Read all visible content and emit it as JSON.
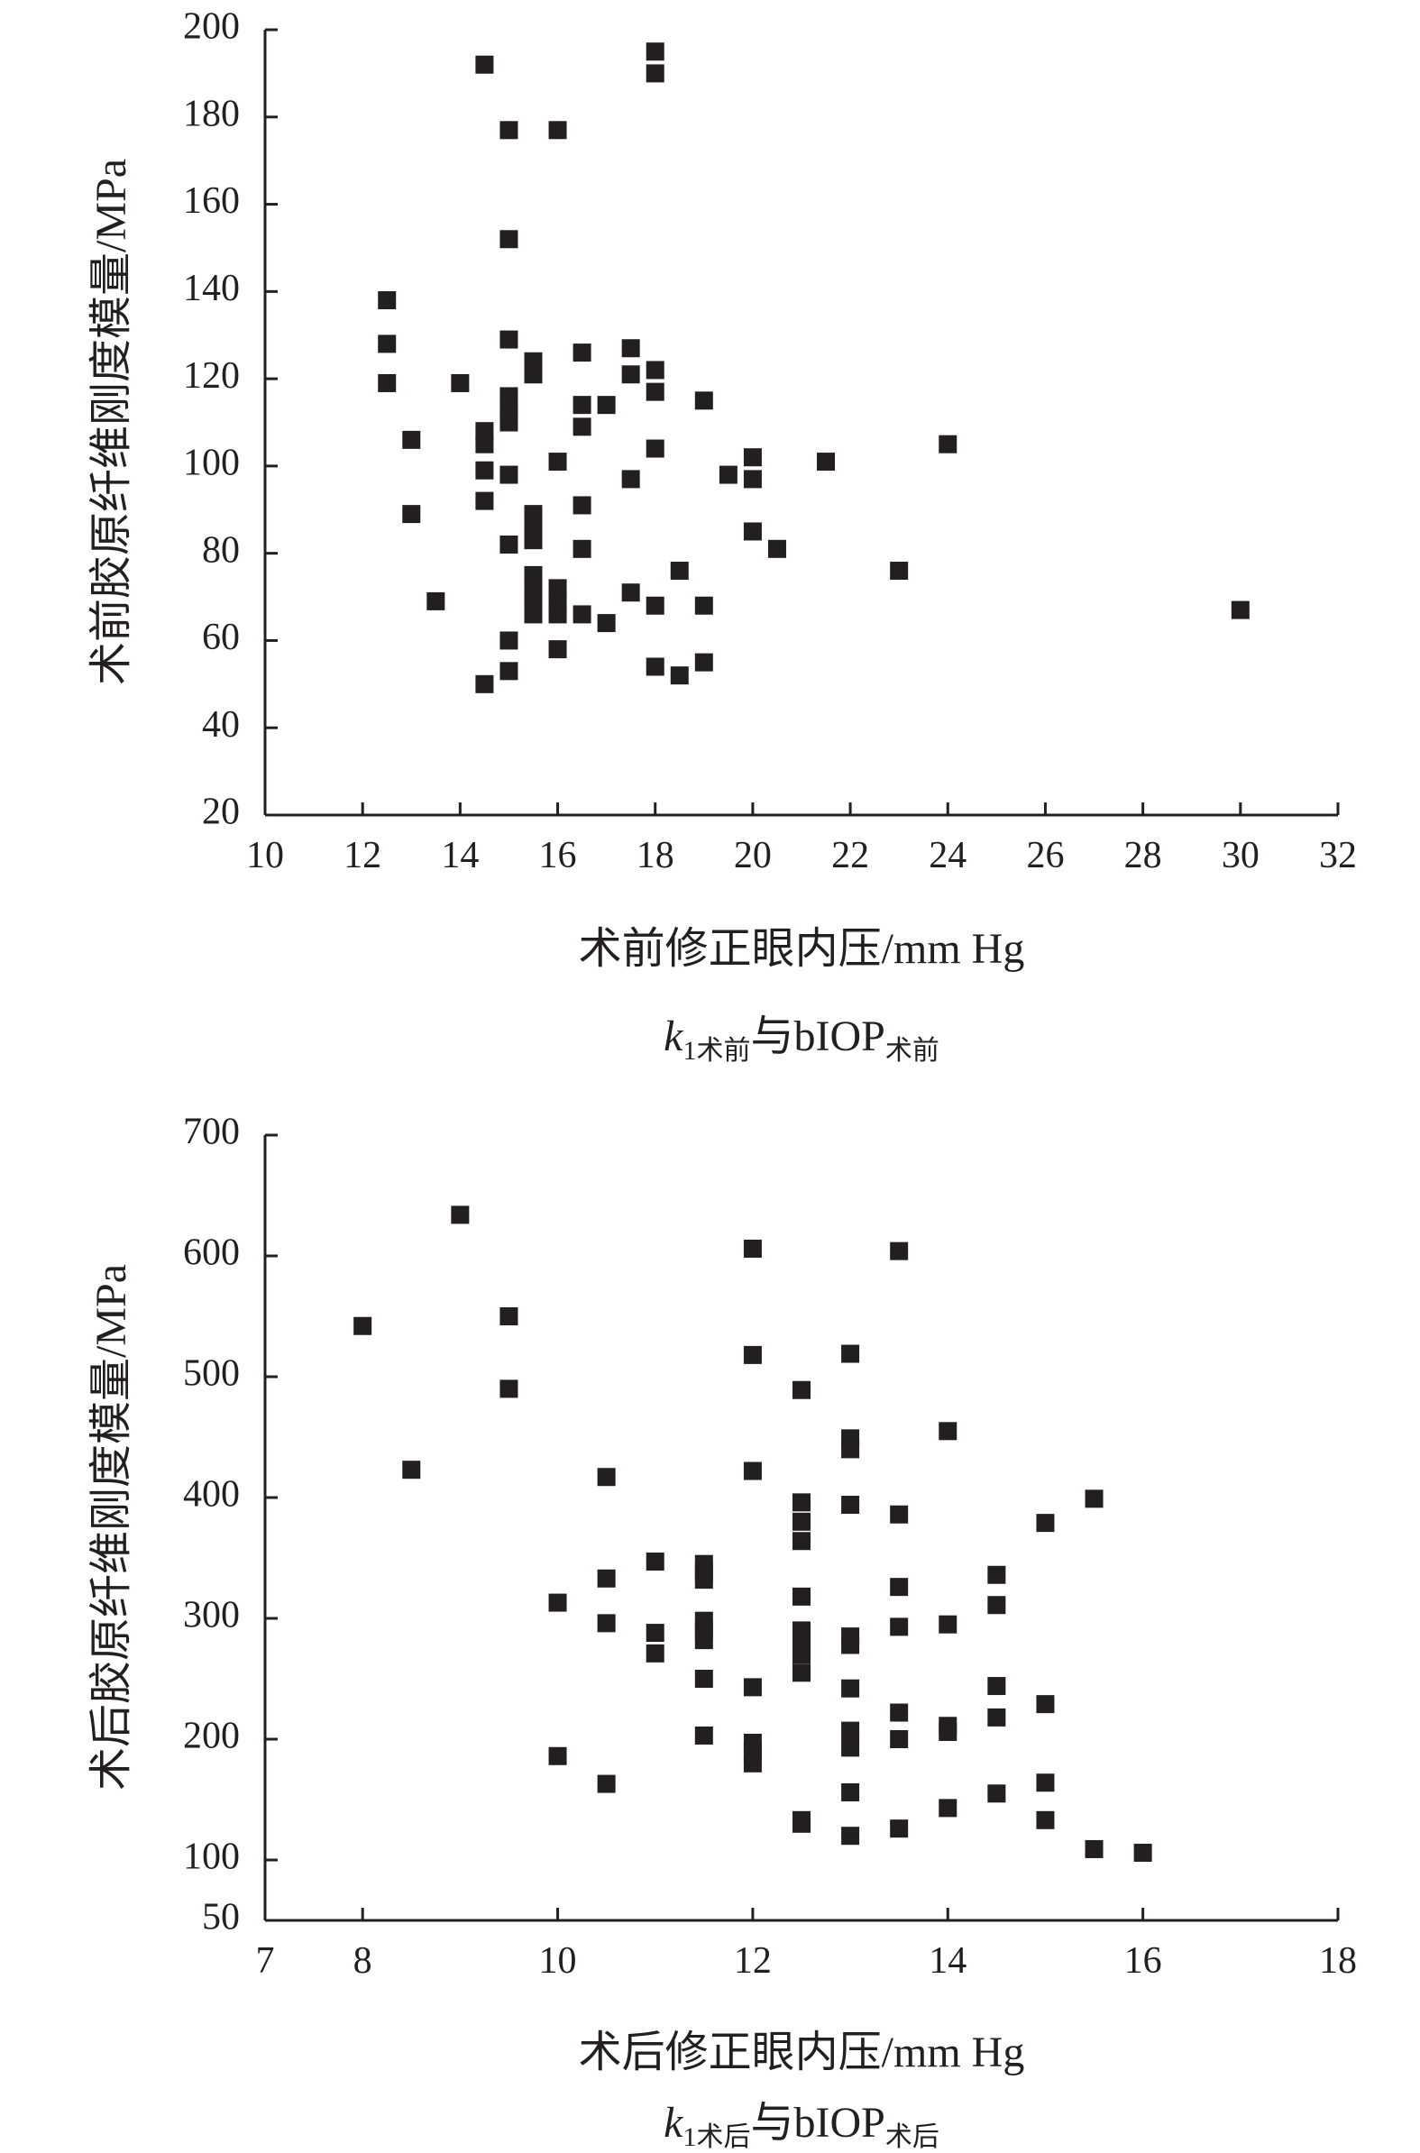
{
  "chart_data": [
    {
      "type": "scatter",
      "xlabel": "术前修正眼内压/mm Hg",
      "ylabel": "术前胶原纤维刚度模量/MPa",
      "caption": {
        "k": "k",
        "sub1": "1术前",
        "mid": "与bIOP",
        "sub2": "术前"
      },
      "xlim": [
        10,
        32
      ],
      "ylim": [
        20,
        200
      ],
      "xticks": [
        10,
        12,
        14,
        16,
        18,
        20,
        22,
        24,
        26,
        28,
        30,
        32
      ],
      "yticks": [
        20,
        40,
        60,
        80,
        100,
        120,
        140,
        160,
        180,
        200
      ],
      "marker_color": "#231f20",
      "points": [
        [
          12.5,
          138
        ],
        [
          12.5,
          128
        ],
        [
          12.5,
          119
        ],
        [
          13,
          106
        ],
        [
          13,
          89
        ],
        [
          13.5,
          69
        ],
        [
          14,
          119
        ],
        [
          14.5,
          192
        ],
        [
          14.5,
          108
        ],
        [
          14.5,
          105
        ],
        [
          14.5,
          99
        ],
        [
          14.5,
          92
        ],
        [
          14.5,
          50
        ],
        [
          15,
          177
        ],
        [
          15,
          152
        ],
        [
          15,
          129
        ],
        [
          15,
          116
        ],
        [
          15,
          113
        ],
        [
          15,
          110
        ],
        [
          15,
          98
        ],
        [
          15,
          82
        ],
        [
          15,
          60
        ],
        [
          15,
          53
        ],
        [
          15.5,
          124
        ],
        [
          15.5,
          121
        ],
        [
          15.5,
          89
        ],
        [
          15.5,
          86
        ],
        [
          15.5,
          83
        ],
        [
          15.5,
          75
        ],
        [
          15.5,
          72
        ],
        [
          15.5,
          69
        ],
        [
          15.5,
          66
        ],
        [
          16,
          177
        ],
        [
          16,
          101
        ],
        [
          16,
          72
        ],
        [
          16,
          69
        ],
        [
          16,
          66
        ],
        [
          16,
          58
        ],
        [
          16.5,
          126
        ],
        [
          16.5,
          114
        ],
        [
          16.5,
          109
        ],
        [
          16.5,
          91
        ],
        [
          16.5,
          81
        ],
        [
          16.5,
          66
        ],
        [
          17,
          114
        ],
        [
          17,
          64
        ],
        [
          17.5,
          127
        ],
        [
          17.5,
          121
        ],
        [
          17.5,
          97
        ],
        [
          17.5,
          71
        ],
        [
          18,
          195
        ],
        [
          18,
          190
        ],
        [
          18,
          122
        ],
        [
          18,
          117
        ],
        [
          18,
          104
        ],
        [
          18,
          68
        ],
        [
          18,
          54
        ],
        [
          18.5,
          76
        ],
        [
          18.5,
          52
        ],
        [
          19,
          115
        ],
        [
          19,
          68
        ],
        [
          19,
          55
        ],
        [
          19.5,
          98
        ],
        [
          20,
          102
        ],
        [
          20,
          97
        ],
        [
          20,
          85
        ],
        [
          20.5,
          81
        ],
        [
          21.5,
          101
        ],
        [
          23,
          76
        ],
        [
          24,
          105
        ],
        [
          30,
          67
        ]
      ]
    },
    {
      "type": "scatter",
      "xlabel": "术后修正眼内压/mm Hg",
      "ylabel": "术后胶原纤维刚度模量/MPa",
      "caption": {
        "k": "k",
        "sub1": "1术后",
        "mid": "与bIOP",
        "sub2": "术后"
      },
      "xlim": [
        7,
        18
      ],
      "ylim": [
        50,
        700
      ],
      "xticks": [
        7,
        8,
        10,
        12,
        14,
        16,
        18
      ],
      "yticks": [
        50,
        100,
        200,
        300,
        400,
        500,
        600,
        700
      ],
      "marker_color": "#231f20",
      "points": [
        [
          8,
          542
        ],
        [
          8.5,
          423
        ],
        [
          9,
          634
        ],
        [
          9.5,
          550
        ],
        [
          9.5,
          490
        ],
        [
          10,
          313
        ],
        [
          10,
          186
        ],
        [
          10.5,
          417
        ],
        [
          10.5,
          333
        ],
        [
          10.5,
          296
        ],
        [
          10.5,
          163
        ],
        [
          11,
          347
        ],
        [
          11,
          288
        ],
        [
          11,
          271
        ],
        [
          11.5,
          345
        ],
        [
          11.5,
          338
        ],
        [
          11.5,
          332
        ],
        [
          11.5,
          298
        ],
        [
          11.5,
          290
        ],
        [
          11.5,
          282
        ],
        [
          11.5,
          250
        ],
        [
          11.5,
          203
        ],
        [
          12,
          606
        ],
        [
          12,
          518
        ],
        [
          12,
          422
        ],
        [
          12,
          243
        ],
        [
          12,
          197
        ],
        [
          12,
          189
        ],
        [
          12,
          180
        ],
        [
          12.5,
          489
        ],
        [
          12.5,
          396
        ],
        [
          12.5,
          380
        ],
        [
          12.5,
          364
        ],
        [
          12.5,
          318
        ],
        [
          12.5,
          290
        ],
        [
          12.5,
          283
        ],
        [
          12.5,
          276
        ],
        [
          12.5,
          270
        ],
        [
          12.5,
          255
        ],
        [
          12.5,
          133
        ],
        [
          12.5,
          130
        ],
        [
          13,
          519
        ],
        [
          13,
          449
        ],
        [
          13,
          440
        ],
        [
          13,
          394
        ],
        [
          13,
          285
        ],
        [
          13,
          278
        ],
        [
          13,
          242
        ],
        [
          13,
          207
        ],
        [
          13,
          193
        ],
        [
          13,
          156
        ],
        [
          13,
          120
        ],
        [
          13.5,
          604
        ],
        [
          13.5,
          386
        ],
        [
          13.5,
          326
        ],
        [
          13.5,
          293
        ],
        [
          13.5,
          222
        ],
        [
          13.5,
          200
        ],
        [
          13.5,
          126
        ],
        [
          14,
          455
        ],
        [
          14,
          295
        ],
        [
          14,
          211
        ],
        [
          14,
          206
        ],
        [
          14,
          143
        ],
        [
          14.5,
          336
        ],
        [
          14.5,
          311
        ],
        [
          14.5,
          244
        ],
        [
          14.5,
          218
        ],
        [
          14.5,
          155
        ],
        [
          15,
          379
        ],
        [
          15,
          229
        ],
        [
          15,
          164
        ],
        [
          15,
          133
        ],
        [
          15.5,
          399
        ],
        [
          15.5,
          109
        ],
        [
          16,
          106
        ]
      ]
    }
  ]
}
